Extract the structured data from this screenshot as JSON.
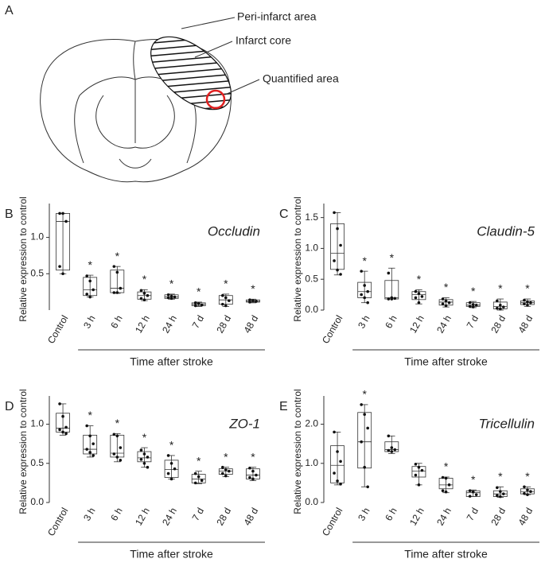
{
  "diagram": {
    "panel": "A",
    "labels": [
      "Peri-infarct area",
      "Infarct core",
      "Quantified area"
    ]
  },
  "chart_data": [
    {
      "type": "box",
      "panel": "B",
      "title": "Occludin",
      "ylabel": "Relative expression to control",
      "xlabel": "Time after stroke",
      "categories": [
        "Control",
        "3 h",
        "6 h",
        "12 h",
        "24 h",
        "7 d",
        "28 d",
        "48 d"
      ],
      "min": [
        0.5,
        0.18,
        0.23,
        0.13,
        0.15,
        0.05,
        0.05,
        0.1
      ],
      "q1": [
        0.55,
        0.2,
        0.24,
        0.15,
        0.16,
        0.06,
        0.08,
        0.11
      ],
      "median": [
        1.22,
        0.28,
        0.3,
        0.2,
        0.18,
        0.08,
        0.14,
        0.12
      ],
      "q3": [
        1.33,
        0.45,
        0.55,
        0.25,
        0.21,
        0.1,
        0.2,
        0.14
      ],
      "max": [
        1.33,
        0.48,
        0.6,
        0.28,
        0.22,
        0.11,
        0.22,
        0.15
      ],
      "points": [
        [
          1.33,
          1.33,
          1.22,
          0.6,
          0.5
        ],
        [
          0.47,
          0.4,
          0.28,
          0.22,
          0.18
        ],
        [
          0.6,
          0.52,
          0.3,
          0.24,
          0.24
        ],
        [
          0.27,
          0.23,
          0.2,
          0.16,
          0.14
        ],
        [
          0.21,
          0.19,
          0.18,
          0.17,
          0.16
        ],
        [
          0.1,
          0.09,
          0.07,
          0.06
        ],
        [
          0.2,
          0.17,
          0.13,
          0.08,
          0.06
        ],
        [
          0.14,
          0.13,
          0.12,
          0.11
        ]
      ],
      "significant": [
        false,
        true,
        true,
        true,
        true,
        true,
        true,
        true
      ],
      "marker": "*",
      "ylim": [
        0,
        1.4
      ],
      "yticks": [
        0.5,
        {
          "value": 1,
          "label": "1.0"
        }
      ]
    },
    {
      "type": "box",
      "panel": "C",
      "title": "Claudin-5",
      "ylabel": "Relative expression to control",
      "xlabel": "Time after stroke",
      "categories": [
        "Control",
        "3 h",
        "6 h",
        "12 h",
        "24 h",
        "7 d",
        "28 d",
        "48 d"
      ],
      "min": [
        0.57,
        0.12,
        0.18,
        0.1,
        0.05,
        0.04,
        0.0,
        0.06
      ],
      "q1": [
        0.66,
        0.2,
        0.18,
        0.17,
        0.08,
        0.06,
        0.02,
        0.09
      ],
      "median": [
        0.92,
        0.3,
        0.2,
        0.25,
        0.13,
        0.08,
        0.06,
        0.12
      ],
      "q3": [
        1.4,
        0.45,
        0.48,
        0.3,
        0.17,
        0.12,
        0.13,
        0.15
      ],
      "max": [
        1.58,
        0.63,
        0.68,
        0.33,
        0.2,
        0.14,
        0.18,
        0.18
      ],
      "points": [
        [
          1.58,
          1.32,
          1.05,
          0.8,
          0.65,
          0.58
        ],
        [
          0.63,
          0.4,
          0.3,
          0.25,
          0.2,
          0.12
        ],
        [
          0.6,
          0.2,
          0.19,
          0.18,
          0.18
        ],
        [
          0.3,
          0.27,
          0.22,
          0.2,
          0.12
        ],
        [
          0.18,
          0.15,
          0.12,
          0.1,
          0.07
        ],
        [
          0.12,
          0.09,
          0.08,
          0.06,
          0.05
        ],
        [
          0.15,
          0.08,
          0.05,
          0.03,
          0.02
        ],
        [
          0.16,
          0.13,
          0.12,
          0.1,
          0.08
        ]
      ],
      "significant": [
        false,
        true,
        true,
        true,
        true,
        true,
        true,
        true
      ],
      "marker": "*",
      "ylim": [
        0,
        1.65
      ],
      "yticks": [
        {
          "value": 0,
          "label": "0.0"
        },
        0.5,
        {
          "value": 1,
          "label": "1.0"
        },
        1.5
      ]
    },
    {
      "type": "box",
      "panel": "D",
      "title": "ZO-1",
      "ylabel": "Relative expression to control",
      "xlabel": "Time after stroke",
      "categories": [
        "Control",
        "3 h",
        "6 h",
        "12 h",
        "24 h",
        "7 d",
        "28 d",
        "48 d"
      ],
      "min": [
        0.86,
        0.58,
        0.52,
        0.45,
        0.3,
        0.24,
        0.33,
        0.28
      ],
      "q1": [
        0.9,
        0.62,
        0.58,
        0.52,
        0.32,
        0.25,
        0.36,
        0.3
      ],
      "median": [
        0.95,
        0.68,
        0.63,
        0.57,
        0.42,
        0.3,
        0.4,
        0.35
      ],
      "q3": [
        1.14,
        0.86,
        0.86,
        0.65,
        0.54,
        0.36,
        0.43,
        0.43
      ],
      "max": [
        1.26,
        0.98,
        0.88,
        0.7,
        0.6,
        0.4,
        0.45,
        0.45
      ],
      "points": [
        [
          1.26,
          1.1,
          0.96,
          0.93,
          0.9,
          0.88
        ],
        [
          0.98,
          0.85,
          0.75,
          0.68,
          0.64,
          0.6
        ],
        [
          0.87,
          0.85,
          0.7,
          0.62,
          0.58,
          0.54
        ],
        [
          0.67,
          0.62,
          0.58,
          0.55,
          0.5,
          0.45
        ],
        [
          0.6,
          0.5,
          0.43,
          0.37,
          0.3
        ],
        [
          0.37,
          0.33,
          0.28,
          0.25
        ],
        [
          0.45,
          0.42,
          0.4,
          0.37,
          0.34
        ],
        [
          0.44,
          0.4,
          0.35,
          0.32,
          0.3
        ]
      ],
      "significant": [
        false,
        true,
        true,
        true,
        true,
        true,
        true,
        true
      ],
      "marker": "*",
      "ylim": [
        0,
        1.3
      ],
      "yticks": [
        {
          "value": 0,
          "label": "0.0"
        },
        0.5,
        {
          "value": 1,
          "label": "1.0"
        }
      ]
    },
    {
      "type": "box",
      "panel": "E",
      "title": "Tricellulin",
      "ylabel": "Relative expression to control",
      "xlabel": "Time after stroke",
      "categories": [
        "Control",
        "3 h",
        "6 h",
        "12 h",
        "24 h",
        "7 d",
        "28 d",
        "48 d"
      ],
      "min": [
        0.45,
        0.4,
        1.25,
        0.45,
        0.25,
        0.15,
        0.13,
        0.2
      ],
      "q1": [
        0.5,
        0.88,
        1.3,
        0.65,
        0.35,
        0.15,
        0.15,
        0.22
      ],
      "median": [
        0.95,
        1.55,
        1.35,
        0.8,
        0.45,
        0.25,
        0.22,
        0.28
      ],
      "q3": [
        1.45,
        2.3,
        1.55,
        0.92,
        0.62,
        0.3,
        0.3,
        0.35
      ],
      "max": [
        1.8,
        2.5,
        1.7,
        1.0,
        0.65,
        0.32,
        0.4,
        0.4
      ],
      "points": [
        [
          1.8,
          1.3,
          1.05,
          0.75,
          0.55,
          0.47
        ],
        [
          2.5,
          2.25,
          1.9,
          1.55,
          0.9,
          0.4
        ],
        [
          1.7,
          1.4,
          1.35,
          1.33,
          1.3
        ],
        [
          0.98,
          0.9,
          0.82,
          0.7,
          0.45
        ],
        [
          0.64,
          0.62,
          0.45,
          0.3,
          0.27
        ],
        [
          0.3,
          0.27,
          0.2,
          0.16
        ],
        [
          0.38,
          0.28,
          0.22,
          0.18,
          0.15
        ],
        [
          0.4,
          0.32,
          0.28,
          0.23,
          0.2
        ]
      ],
      "significant": [
        false,
        true,
        false,
        false,
        true,
        true,
        true,
        true
      ],
      "marker": "*",
      "ylim": [
        0,
        2.6
      ],
      "yticks": [
        {
          "value": 0,
          "label": "0.0"
        },
        {
          "value": 1,
          "label": "1.0"
        },
        {
          "value": 2,
          "label": "2.0"
        }
      ]
    }
  ]
}
